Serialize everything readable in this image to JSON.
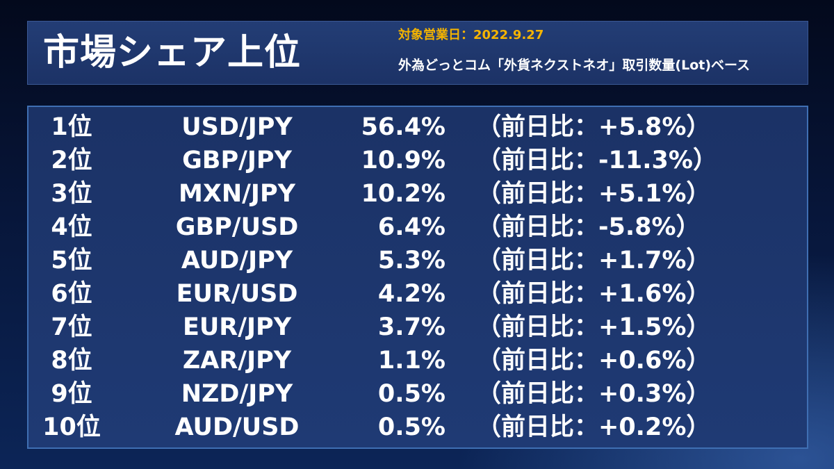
{
  "header": {
    "title": "市場シェア上位",
    "date_line": "対象営業日：2022.9.27",
    "basis_line": "外為どっとコム「外貨ネクストネオ」取引数量(Lot)ベース"
  },
  "colors": {
    "accent_date": "#f5b400",
    "panel": "#1c3266",
    "border": "#3f6fb3"
  },
  "rankings": [
    {
      "rank": "1位",
      "pair": "USD/JPY",
      "share": "56.4%",
      "change": "（前日比：+5.8%）"
    },
    {
      "rank": "2位",
      "pair": "GBP/JPY",
      "share": "10.9%",
      "change": "（前日比：-11.3%）"
    },
    {
      "rank": "3位",
      "pair": "MXN/JPY",
      "share": "10.2%",
      "change": "（前日比：+5.1%）"
    },
    {
      "rank": "4位",
      "pair": "GBP/USD",
      "share": "6.4%",
      "change": "（前日比：-5.8%）"
    },
    {
      "rank": "5位",
      "pair": "AUD/JPY",
      "share": "5.3%",
      "change": "（前日比：+1.7%）"
    },
    {
      "rank": "6位",
      "pair": "EUR/USD",
      "share": "4.2%",
      "change": "（前日比：+1.6%）"
    },
    {
      "rank": "7位",
      "pair": "EUR/JPY",
      "share": "3.7%",
      "change": "（前日比：+1.5%）"
    },
    {
      "rank": "8位",
      "pair": "ZAR/JPY",
      "share": "1.1%",
      "change": "（前日比：+0.6%）"
    },
    {
      "rank": "9位",
      "pair": "NZD/JPY",
      "share": "0.5%",
      "change": "（前日比：+0.3%）"
    },
    {
      "rank": "10位",
      "pair": "AUD/USD",
      "share": "0.5%",
      "change": "（前日比：+0.2%）"
    }
  ]
}
